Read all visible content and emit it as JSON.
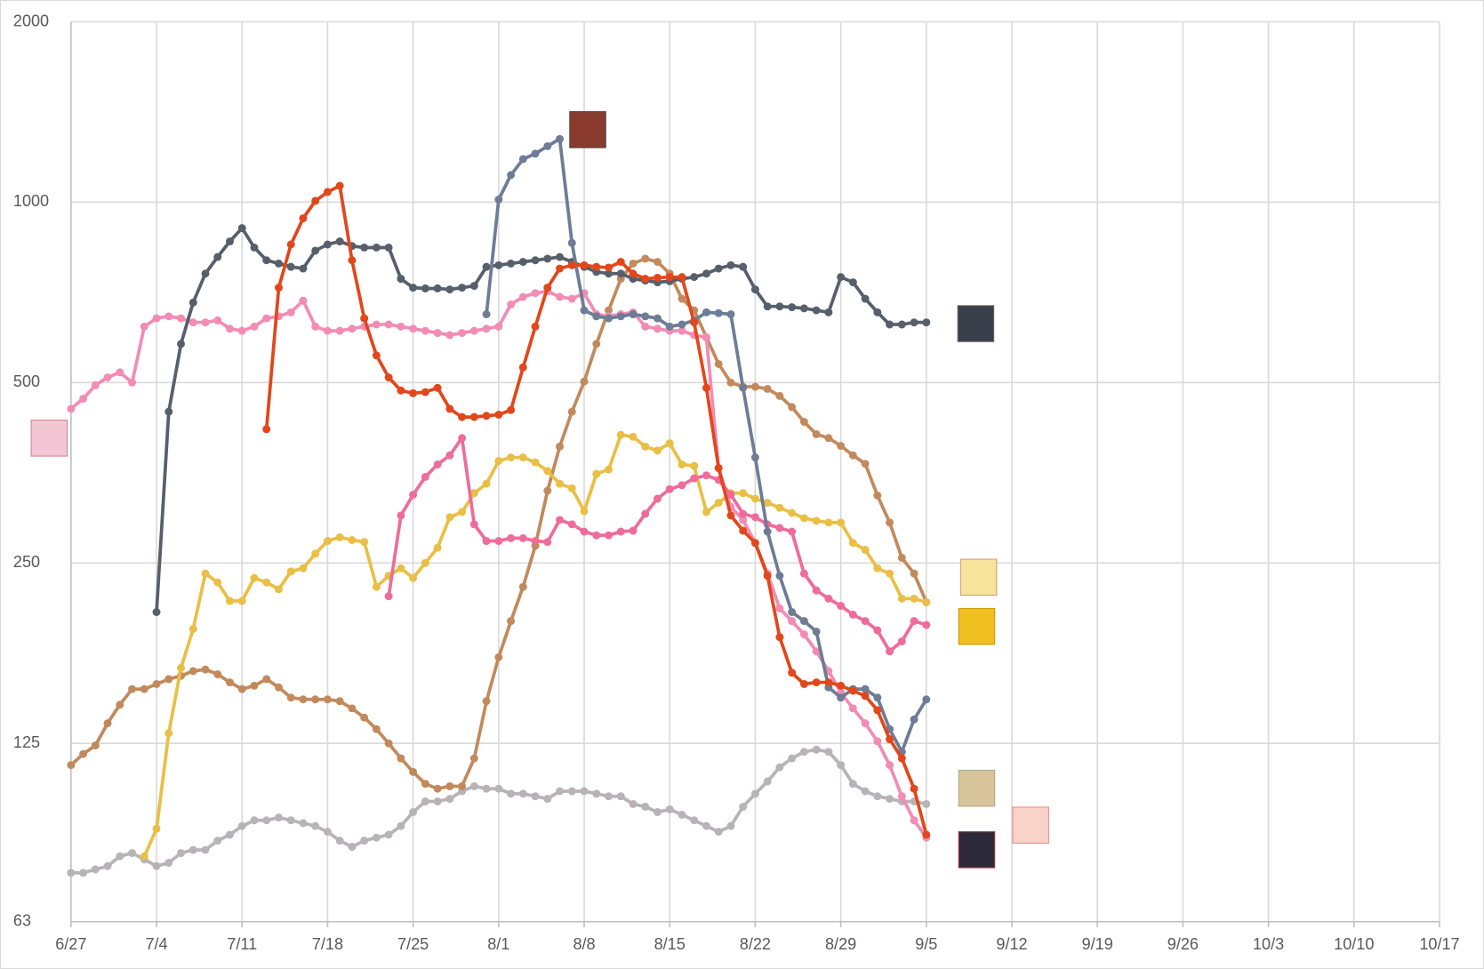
{
  "chart_data": {
    "type": "line",
    "log_scale": true,
    "grid": true,
    "categories": [
      "6/27",
      null,
      null,
      null,
      null,
      null,
      null,
      "7/4",
      null,
      null,
      null,
      null,
      null,
      null,
      "7/11",
      null,
      null,
      null,
      null,
      null,
      null,
      "7/18",
      null,
      null,
      null,
      null,
      null,
      null,
      "7/25",
      null,
      null,
      null,
      null,
      null,
      null,
      "8/1",
      null,
      null,
      null,
      null,
      null,
      null,
      "8/8",
      null,
      null,
      null,
      null,
      null,
      null,
      "8/15",
      null,
      null,
      null,
      null,
      null,
      null,
      "8/22",
      null,
      null,
      null,
      null,
      null,
      null,
      "8/29",
      null,
      null,
      null,
      null,
      null,
      null,
      "9/5",
      null,
      null,
      null,
      null,
      null,
      null,
      "9/12",
      null,
      null,
      null,
      null,
      null,
      null,
      "9/19",
      null,
      null,
      null,
      null,
      null,
      null,
      "9/26",
      null,
      null,
      null,
      null,
      null,
      null,
      "10/3",
      null,
      null,
      null,
      null,
      null,
      null,
      "10/10",
      null,
      null,
      null,
      null,
      null,
      null,
      "10/17"
    ],
    "ylim": [
      63,
      2000
    ],
    "yticks": [
      63,
      125,
      250,
      500,
      1000,
      2000
    ],
    "series": [
      {
        "color": "#b8b3b6",
        "values": [
          76,
          76,
          77,
          78,
          81,
          82,
          80,
          78,
          79,
          82,
          83,
          83,
          86,
          88,
          91,
          93,
          93,
          94,
          93,
          92,
          91,
          89,
          86,
          84,
          86,
          87,
          88,
          91,
          96,
          100,
          100,
          101,
          104,
          106,
          105,
          105,
          103,
          103,
          102,
          101,
          104,
          104,
          104,
          103,
          102,
          102,
          99,
          98,
          96,
          97,
          95,
          93,
          91,
          89,
          91,
          98,
          103,
          108,
          114,
          118,
          121,
          122,
          121,
          115,
          107,
          104,
          102,
          101,
          100,
          100,
          99,
          null,
          null,
          null,
          null,
          null,
          null,
          null,
          null,
          null,
          null,
          null,
          null,
          null,
          null,
          null,
          null,
          null,
          null,
          null,
          null,
          null,
          null,
          null,
          null,
          null,
          null,
          null,
          null,
          null,
          null,
          null,
          null,
          null,
          null,
          null,
          null,
          null,
          null,
          null,
          null,
          null,
          null
        ]
      },
      {
        "color": "#c28a5c",
        "values": [
          115,
          120,
          124,
          135,
          145,
          154,
          154,
          157,
          160,
          162,
          165,
          166,
          163,
          158,
          154,
          156,
          160,
          155,
          149,
          148,
          148,
          148,
          147,
          143,
          138,
          132,
          125,
          118,
          112,
          107,
          105,
          106,
          106,
          118,
          147,
          174,
          200,
          228,
          267,
          330,
          391,
          447,
          502,
          580,
          660,
          745,
          790,
          805,
          795,
          760,
          690,
          660,
          595,
          537,
          500,
          492,
          492,
          488,
          475,
          455,
          430,
          410,
          404,
          392,
          378,
          366,
          324,
          292,
          255,
          240,
          215,
          null,
          null,
          null,
          null,
          null,
          null,
          null,
          null,
          null,
          null,
          null,
          null,
          null,
          null,
          null,
          null,
          null,
          null,
          null,
          null,
          null,
          null,
          null,
          null,
          null,
          null,
          null,
          null,
          null,
          null,
          null,
          null,
          null,
          null,
          null,
          null,
          null,
          null,
          null,
          null,
          null,
          null
        ]
      },
      {
        "color": "#e9bf45",
        "values": [
          null,
          null,
          null,
          null,
          null,
          null,
          81,
          90,
          130,
          167,
          194,
          240,
          232,
          216,
          216,
          236,
          232,
          226,
          242,
          245,
          259,
          272,
          276,
          273,
          271,
          228,
          238,
          245,
          236,
          250,
          265,
          298,
          304,
          327,
          339,
          370,
          375,
          375,
          368,
          356,
          339,
          333,
          305,
          352,
          358,
          409,
          406,
          391,
          385,
          396,
          365,
          363,
          304,
          315,
          327,
          327,
          320,
          315,
          309,
          303,
          297,
          294,
          292,
          292,
          270,
          263,
          245,
          240,
          218,
          218,
          215,
          null,
          null,
          null,
          null,
          null,
          null,
          null,
          null,
          null,
          null,
          null,
          null,
          null,
          null,
          null,
          null,
          null,
          null,
          null,
          null,
          null,
          null,
          null,
          null,
          null,
          null,
          null,
          null,
          null,
          null,
          null,
          null,
          null,
          null,
          null,
          null,
          null,
          null,
          null,
          null,
          null,
          null
        ]
      },
      {
        "color": "#f28cb4",
        "values": [
          452,
          470,
          495,
          510,
          520,
          500,
          620,
          640,
          645,
          640,
          630,
          630,
          635,
          615,
          610,
          620,
          640,
          645,
          655,
          685,
          620,
          610,
          610,
          615,
          620,
          625,
          625,
          620,
          615,
          610,
          605,
          600,
          605,
          610,
          615,
          620,
          675,
          695,
          705,
          710,
          695,
          690,
          705,
          650,
          645,
          650,
          655,
          620,
          615,
          610,
          610,
          600,
          595,
          360,
          310,
          295,
          270,
          240,
          210,
          200,
          190,
          178,
          165,
          152,
          143,
          135,
          126,
          115,
          102,
          93,
          87,
          null,
          null,
          null,
          null,
          null,
          null,
          null,
          null,
          null,
          null,
          null,
          null,
          null,
          null,
          null,
          null,
          null,
          null,
          null,
          null,
          null,
          null,
          null,
          null,
          null,
          null,
          null,
          null,
          null,
          null,
          null,
          null,
          null,
          null,
          null,
          null,
          null,
          null,
          null,
          null,
          null,
          null
        ]
      },
      {
        "color": "#ee6c9a",
        "values": [
          null,
          null,
          null,
          null,
          null,
          null,
          null,
          null,
          null,
          null,
          null,
          null,
          null,
          null,
          null,
          null,
          null,
          null,
          null,
          null,
          null,
          null,
          null,
          null,
          null,
          null,
          220,
          300,
          325,
          348,
          365,
          378,
          404,
          290,
          272,
          272,
          275,
          275,
          272,
          271,
          295,
          290,
          282,
          278,
          278,
          282,
          283,
          302,
          320,
          332,
          337,
          346,
          350,
          344,
          325,
          302,
          298,
          290,
          286,
          282,
          240,
          225,
          218,
          212,
          205,
          200,
          193,
          178,
          185,
          200,
          197,
          null,
          null,
          null,
          null,
          null,
          null,
          null,
          null,
          null,
          null,
          null,
          null,
          null,
          null,
          null,
          null,
          null,
          null,
          null,
          null,
          null,
          null,
          null,
          null,
          null,
          null,
          null,
          null,
          null,
          null,
          null,
          null,
          null,
          null,
          null,
          null,
          null,
          null,
          null,
          null,
          null,
          null
        ]
      },
      {
        "color": "#575f6b",
        "values": [
          null,
          null,
          null,
          null,
          null,
          null,
          null,
          207,
          447,
          580,
          680,
          760,
          810,
          860,
          905,
          840,
          800,
          790,
          780,
          775,
          830,
          850,
          860,
          845,
          840,
          840,
          840,
          745,
          720,
          718,
          718,
          715,
          720,
          725,
          780,
          785,
          790,
          795,
          800,
          805,
          810,
          795,
          780,
          765,
          760,
          760,
          745,
          740,
          735,
          738,
          745,
          750,
          760,
          775,
          785,
          780,
          715,
          670,
          670,
          668,
          665,
          660,
          655,
          750,
          735,
          690,
          655,
          625,
          625,
          630,
          630,
          null,
          null,
          null,
          null,
          null,
          null,
          null,
          null,
          null,
          null,
          null,
          null,
          null,
          null,
          null,
          null,
          null,
          null,
          null,
          null,
          null,
          null,
          null,
          null,
          null,
          null,
          null,
          null,
          null,
          null,
          null,
          null,
          null,
          null,
          null,
          null,
          null,
          null,
          null,
          null,
          null,
          null
        ]
      },
      {
        "color": "#6e7c96",
        "values": [
          null,
          null,
          null,
          null,
          null,
          null,
          null,
          null,
          null,
          null,
          null,
          null,
          null,
          null,
          null,
          null,
          null,
          null,
          null,
          null,
          null,
          null,
          null,
          null,
          null,
          null,
          null,
          null,
          null,
          null,
          null,
          null,
          null,
          null,
          650,
          1010,
          1110,
          1180,
          1205,
          1240,
          1275,
          855,
          660,
          645,
          640,
          645,
          650,
          645,
          640,
          620,
          625,
          635,
          655,
          653,
          650,
          490,
          375,
          282,
          238,
          207,
          200,
          192,
          155,
          149,
          154,
          154,
          149,
          132,
          121,
          137,
          148,
          null,
          null,
          null,
          null,
          null,
          null,
          null,
          null,
          null,
          null,
          null,
          null,
          null,
          null,
          null,
          null,
          null,
          null,
          null,
          null,
          null,
          null,
          null,
          null,
          null,
          null,
          null,
          null,
          null,
          null,
          null,
          null,
          null,
          null,
          null,
          null,
          null,
          null,
          null,
          null,
          null,
          null
        ]
      },
      {
        "color": "#e2471b",
        "values": [
          null,
          null,
          null,
          null,
          null,
          null,
          null,
          null,
          null,
          null,
          null,
          null,
          null,
          null,
          null,
          null,
          418,
          720,
          850,
          940,
          1005,
          1040,
          1065,
          800,
          640,
          555,
          510,
          485,
          480,
          482,
          490,
          452,
          438,
          438,
          440,
          442,
          450,
          530,
          620,
          720,
          775,
          785,
          785,
          780,
          778,
          795,
          760,
          745,
          748,
          750,
          750,
          630,
          490,
          360,
          300,
          283,
          270,
          238,
          188,
          164,
          157,
          158,
          158,
          156,
          153,
          150,
          142,
          127,
          118,
          105,
          88,
          null,
          null,
          null,
          null,
          null,
          null,
          null,
          null,
          null,
          null,
          null,
          null,
          null,
          null,
          null,
          null,
          null,
          null,
          null,
          null,
          null,
          null,
          null,
          null,
          null,
          null,
          null,
          null,
          null,
          null,
          null,
          null,
          null,
          null,
          null,
          null,
          null,
          null,
          null,
          null,
          null,
          null
        ]
      }
    ]
  }
}
